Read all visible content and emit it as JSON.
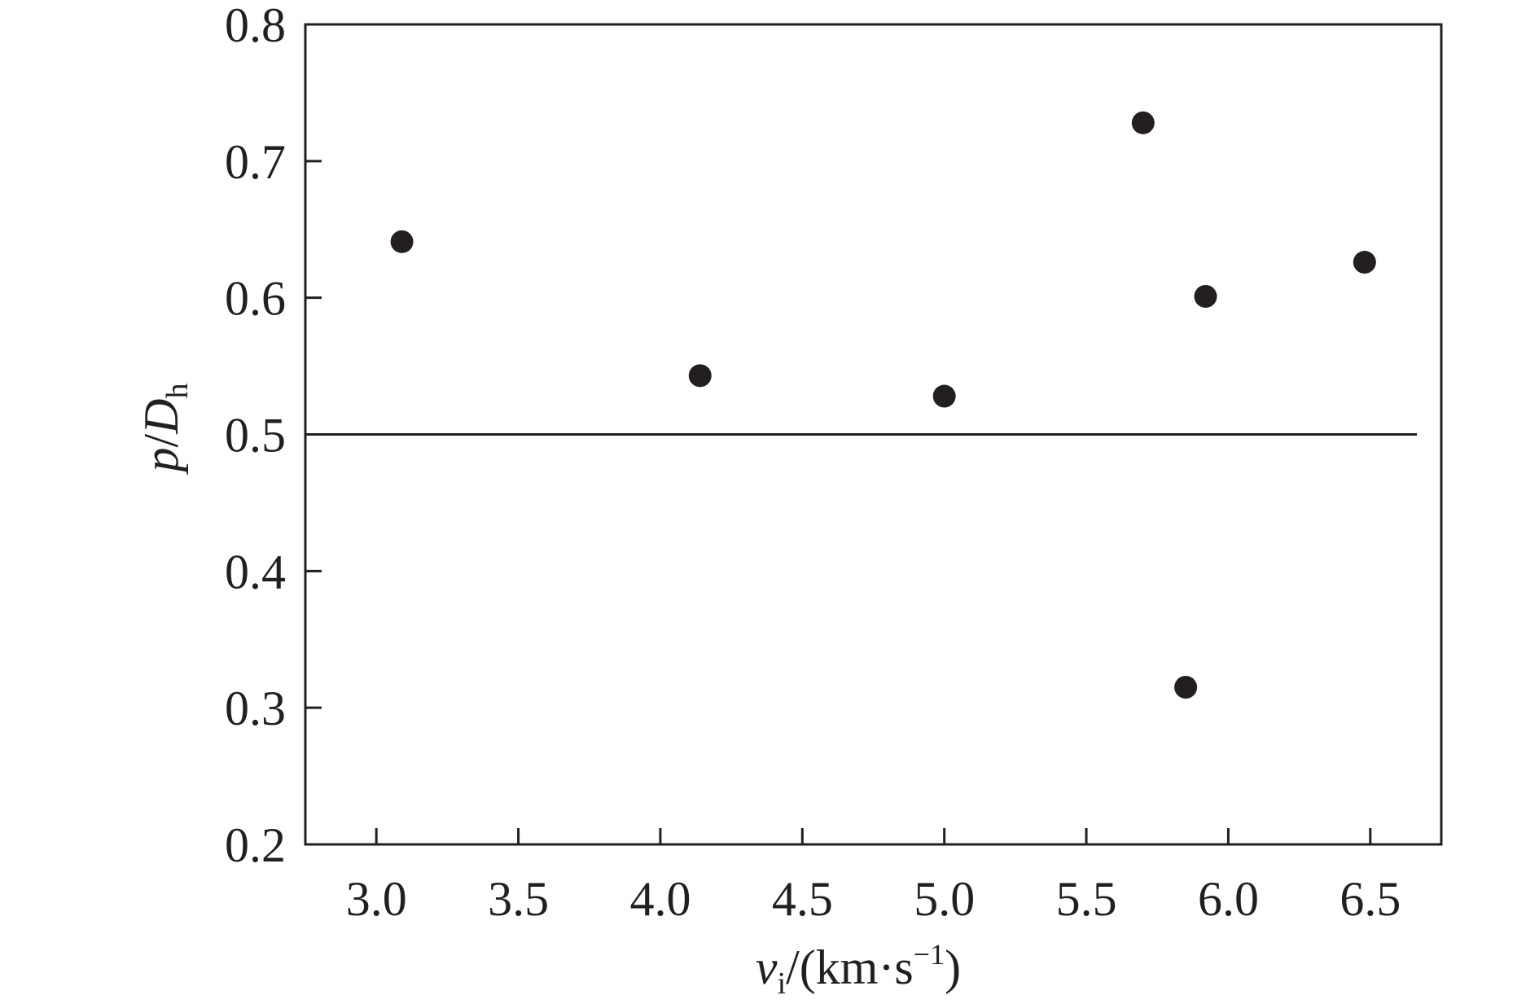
{
  "chart_data": {
    "type": "scatter",
    "title": "",
    "xlabel": {
      "symbol": "v",
      "subscript": "i",
      "unit_open": "/(km·s",
      "exponent": "−1",
      "unit_close": ")"
    },
    "ylabel": {
      "symbol_p": "p",
      "slash": "/",
      "symbol_D": "D",
      "subscript": "h"
    },
    "xlim": [
      2.75,
      6.75
    ],
    "ylim": [
      0.2,
      0.8
    ],
    "xticks": [
      3.0,
      3.5,
      4.0,
      4.5,
      5.0,
      5.5,
      6.0,
      6.5
    ],
    "xtick_labels": [
      "3.0",
      "3.5",
      "4.0",
      "4.5",
      "5.0",
      "5.5",
      "6.0",
      "6.5"
    ],
    "yticks": [
      0.2,
      0.3,
      0.4,
      0.5,
      0.6,
      0.7,
      0.8
    ],
    "ytick_labels": [
      "0.2",
      "0.3",
      "0.4",
      "0.5",
      "0.6",
      "0.7",
      "0.8"
    ],
    "grid": false,
    "legend": "none",
    "reference_line": {
      "y": 0.5
    },
    "points": [
      {
        "x": 3.09,
        "y": 0.641
      },
      {
        "x": 4.14,
        "y": 0.543
      },
      {
        "x": 5.0,
        "y": 0.528
      },
      {
        "x": 5.7,
        "y": 0.728
      },
      {
        "x": 5.85,
        "y": 0.315
      },
      {
        "x": 5.92,
        "y": 0.601
      },
      {
        "x": 6.48,
        "y": 0.626
      }
    ],
    "colors": {
      "ink": "#231f20",
      "background": "#ffffff"
    }
  }
}
